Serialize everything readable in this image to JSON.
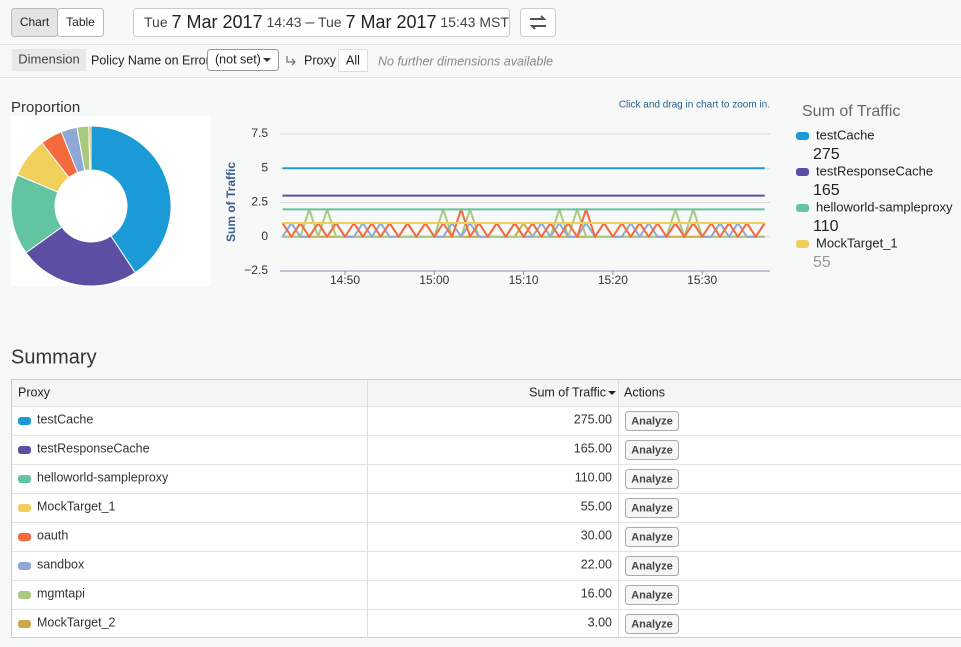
{
  "toolbar": {
    "view_buttons": [
      "Chart",
      "Table"
    ],
    "from": {
      "day": "Tue",
      "date": "7 Mar 2017",
      "time": "14:43"
    },
    "separator": "–",
    "to": {
      "day": "Tue",
      "date": "7 Mar 2017",
      "time": "15:43 MST"
    }
  },
  "filters": {
    "dimension": "Dimension",
    "field": "Policy Name on Error",
    "select": "(not set)",
    "proxy": "Proxy",
    "all": "All",
    "note": "No further dimensions available"
  },
  "chart_data": [
    {
      "type": "pie",
      "title": "Proportion",
      "legend_title": "Sum of Traffic",
      "categories": [
        "testCache",
        "testResponseCache",
        "helloworld-sampleproxy",
        "MockTarget_1",
        "oauth",
        "sandbox",
        "mgmtapi",
        "MockTarget_2"
      ],
      "colors": [
        "#1a9bd7",
        "#5c4ea3",
        "#62c4a0",
        "#f0cf5a",
        "#f46a3c",
        "#8fa8d6",
        "#a9c97f",
        "#c9a94a"
      ],
      "values": [
        275,
        165,
        110,
        55,
        30,
        22,
        16,
        3
      ],
      "value_labels": [
        "275.00",
        "165.00",
        "110.00",
        "55.00",
        "30.00",
        "22.00",
        "16.00",
        "3.00"
      ]
    },
    {
      "type": "line",
      "annotation": "Click and drag in chart to zoom in.",
      "y_label": "Sum of Traffic",
      "ylim": [
        -2.5,
        7.5
      ],
      "yticks": [
        {
          "value": -2.5,
          "label": "−2.5"
        },
        0,
        2.5,
        5,
        7.5
      ],
      "x": [
        "14:43",
        "14:44",
        "14:45",
        "14:46",
        "14:47",
        "14:48",
        "14:49",
        "14:50",
        "14:51",
        "14:52",
        "14:53",
        "14:54",
        "14:55",
        "14:56",
        "14:57",
        "14:58",
        "14:59",
        "15:00",
        "15:01",
        "15:02",
        "15:03",
        "15:04",
        "15:05",
        "15:06",
        "15:07",
        "15:08",
        "15:09",
        "15:10",
        "15:11",
        "15:12",
        "15:13",
        "15:14",
        "15:15",
        "15:16",
        "15:17",
        "15:18",
        "15:19",
        "15:20",
        "15:21",
        "15:22",
        "15:23",
        "15:24",
        "15:25",
        "15:26",
        "15:27",
        "15:28",
        "15:29",
        "15:30",
        "15:31",
        "15:32",
        "15:33",
        "15:34",
        "15:35",
        "15:36",
        "15:37"
      ],
      "xticks": [
        "14:50",
        "15:00",
        "15:10",
        "15:20",
        "15:30"
      ],
      "series": [
        {
          "name": "testCache",
          "color": "#1a9bd7",
          "values": [
            5,
            5,
            5,
            5,
            5,
            5,
            5,
            5,
            5,
            5,
            5,
            5,
            5,
            5,
            5,
            5,
            5,
            5,
            5,
            5,
            5,
            5,
            5,
            5,
            5,
            5,
            5,
            5,
            5,
            5,
            5,
            5,
            5,
            5,
            5,
            5,
            5,
            5,
            5,
            5,
            5,
            5,
            5,
            5,
            5,
            5,
            5,
            5,
            5,
            5,
            5,
            5,
            5,
            5,
            5
          ]
        },
        {
          "name": "testResponseCache",
          "color": "#5c4ea3",
          "values": [
            3,
            3,
            3,
            3,
            3,
            3,
            3,
            3,
            3,
            3,
            3,
            3,
            3,
            3,
            3,
            3,
            3,
            3,
            3,
            3,
            3,
            3,
            3,
            3,
            3,
            3,
            3,
            3,
            3,
            3,
            3,
            3,
            3,
            3,
            3,
            3,
            3,
            3,
            3,
            3,
            3,
            3,
            3,
            3,
            3,
            3,
            3,
            3,
            3,
            3,
            3,
            3,
            3,
            3,
            3
          ]
        },
        {
          "name": "helloworld-sampleproxy",
          "color": "#62c4a0",
          "values": [
            2,
            2,
            2,
            2,
            2,
            2,
            2,
            2,
            2,
            2,
            2,
            2,
            2,
            2,
            2,
            2,
            2,
            2,
            2,
            2,
            2,
            2,
            2,
            2,
            2,
            2,
            2,
            2,
            2,
            2,
            2,
            2,
            2,
            2,
            2,
            2,
            2,
            2,
            2,
            2,
            2,
            2,
            2,
            2,
            2,
            2,
            2,
            2,
            2,
            2,
            2,
            2,
            2,
            2,
            2
          ]
        },
        {
          "name": "MockTarget_1",
          "color": "#f0cf5a",
          "values": [
            1,
            1,
            1,
            1,
            1,
            1,
            1,
            1,
            1,
            1,
            1,
            1,
            1,
            1,
            1,
            1,
            1,
            1,
            1,
            1,
            1,
            1,
            1,
            1,
            1,
            1,
            1,
            1,
            1,
            1,
            1,
            1,
            1,
            1,
            1,
            1,
            1,
            1,
            1,
            1,
            1,
            1,
            1,
            1,
            1,
            1,
            1,
            1,
            1,
            1,
            1,
            1,
            1,
            1,
            1
          ]
        },
        {
          "name": "oauth",
          "color": "#f46a3c",
          "values": [
            1,
            0,
            1,
            0,
            1,
            0,
            1,
            0,
            1,
            0,
            1,
            0,
            1,
            0,
            1,
            0,
            1,
            0,
            1,
            0,
            2,
            0,
            1,
            0,
            1,
            0,
            1,
            0,
            1,
            0,
            1,
            0,
            1,
            0,
            2,
            0,
            1,
            0,
            1,
            0,
            1,
            0,
            1,
            0,
            1,
            0,
            1,
            0,
            1,
            0,
            1,
            0,
            1,
            0,
            1
          ]
        },
        {
          "name": "sandbox",
          "color": "#8fa8d6",
          "values": [
            0,
            1,
            0,
            0,
            1,
            0,
            1,
            0,
            0,
            1,
            0,
            1,
            0,
            0,
            1,
            0,
            1,
            0,
            0,
            1,
            0,
            1,
            0,
            0,
            1,
            0,
            1,
            0,
            0,
            1,
            0,
            1,
            0,
            0,
            1,
            0,
            1,
            0,
            0,
            1,
            0,
            1,
            0,
            0,
            1,
            0,
            1,
            0,
            0,
            1,
            0,
            1,
            0,
            0,
            1
          ]
        },
        {
          "name": "mgmtapi",
          "color": "#a9c97f",
          "values": [
            0,
            0,
            0,
            2,
            0,
            2,
            0,
            0,
            0,
            0,
            0,
            0,
            0,
            0,
            0,
            0,
            0,
            0,
            2,
            0,
            0,
            2,
            0,
            0,
            0,
            0,
            0,
            0,
            0,
            0,
            0,
            2,
            0,
            2,
            0,
            0,
            0,
            0,
            0,
            0,
            0,
            0,
            0,
            0,
            2,
            0,
            2,
            0,
            0,
            0,
            0,
            0,
            0,
            0,
            0
          ]
        },
        {
          "name": "MockTarget_2",
          "color": "#c9a94a",
          "values": [
            0,
            0,
            0,
            0,
            0,
            0,
            0,
            0,
            0,
            0,
            0,
            0,
            1,
            0,
            0,
            0,
            0,
            0,
            0,
            0,
            0,
            0,
            0,
            0,
            0,
            0,
            0,
            1,
            0,
            0,
            0,
            0,
            0,
            0,
            0,
            0,
            0,
            0,
            0,
            0,
            0,
            0,
            0,
            0,
            0,
            0,
            0,
            0,
            0,
            1,
            0,
            0,
            0,
            0,
            0
          ]
        }
      ]
    }
  ],
  "summary": {
    "title": "Summary"
  },
  "table": {
    "headers": [
      "Proxy",
      "Sum of Traffic",
      "Actions"
    ],
    "button": "Analyze"
  }
}
